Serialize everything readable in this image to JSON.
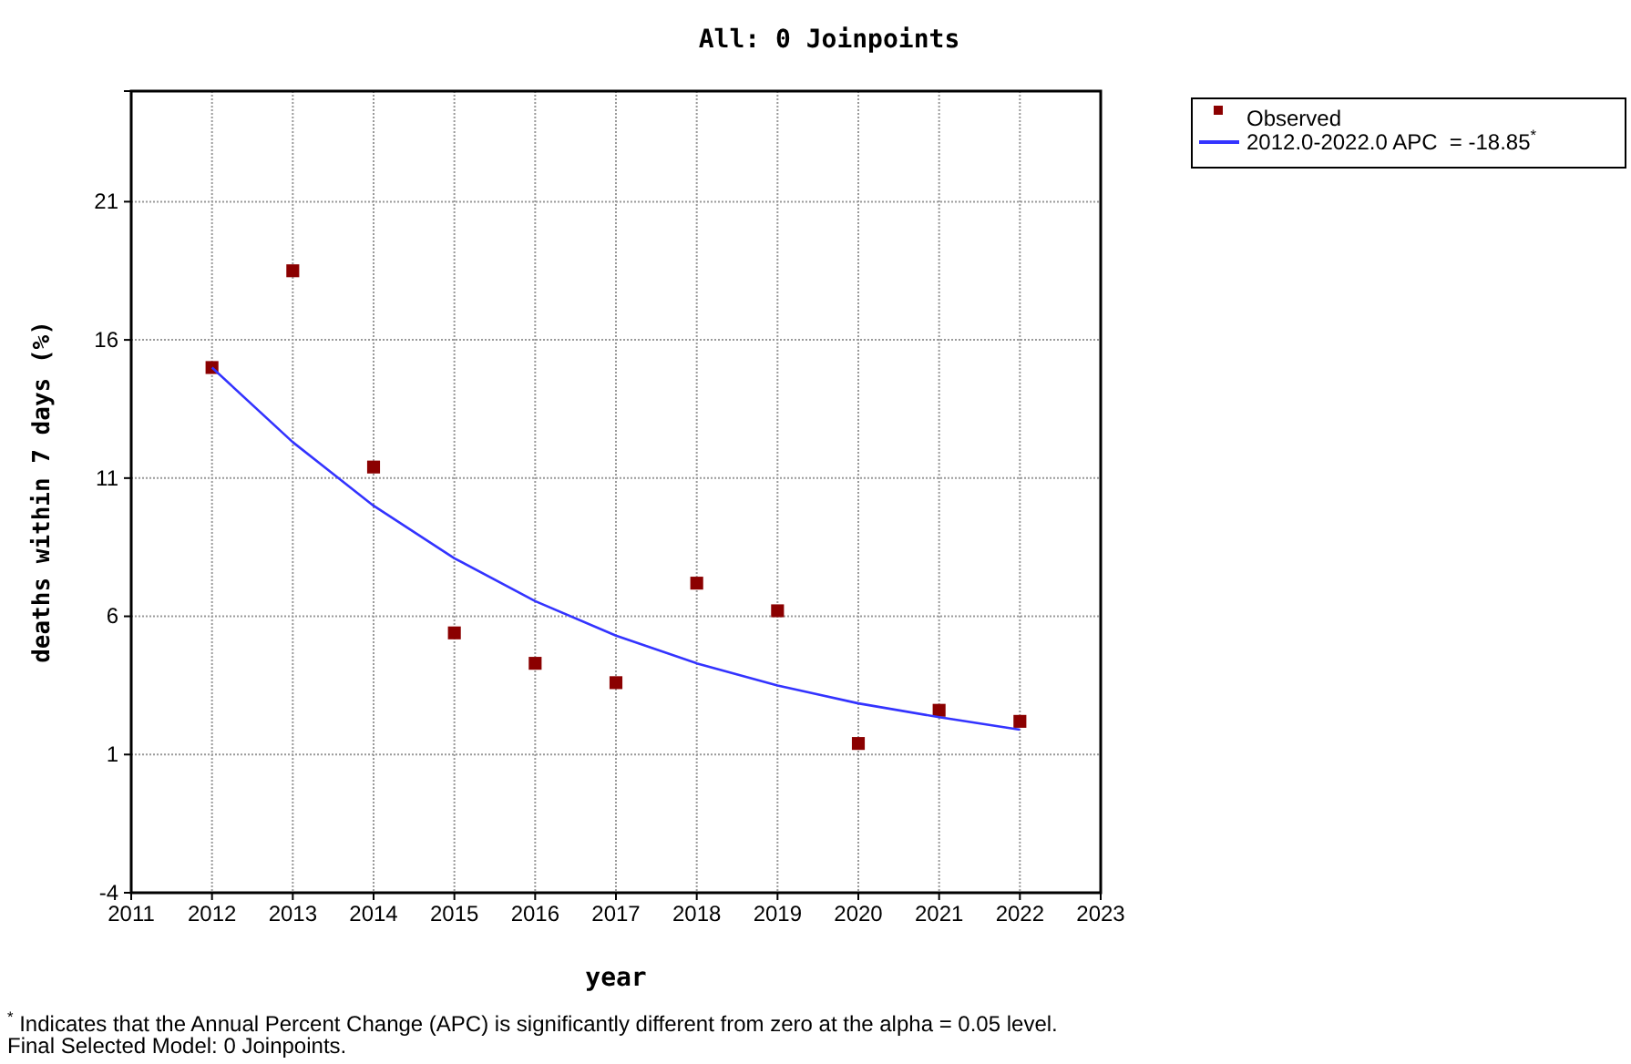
{
  "chart_data": {
    "type": "scatter",
    "title": "All: 0 Joinpoints",
    "xlabel": "year",
    "ylabel": "deaths within 7 days (%)",
    "x": [
      2012,
      2013,
      2014,
      2015,
      2016,
      2017,
      2018,
      2019,
      2020,
      2021,
      2022
    ],
    "series": [
      {
        "name": "Observed",
        "color": "#8b0000",
        "marker": "square",
        "values": [
          15.0,
          18.5,
          11.4,
          5.4,
          4.3,
          3.6,
          7.2,
          6.2,
          1.4,
          2.6,
          2.2
        ]
      },
      {
        "name": "2012.0-2022.0 APC  = -18.85$^{*}$",
        "type": "line",
        "color": "#3333ff",
        "marker": "none",
        "values": [
          15.0,
          12.3,
          10.0,
          8.1,
          6.55,
          5.3,
          4.3,
          3.5,
          2.85,
          2.35,
          1.9
        ]
      }
    ],
    "xlim": [
      2011,
      2023
    ],
    "xticks": [
      2011,
      2012,
      2013,
      2014,
      2015,
      2016,
      2017,
      2018,
      2019,
      2020,
      2021,
      2022,
      2023
    ],
    "ylim": [
      -4,
      25
    ],
    "yticks": [
      -4,
      1,
      6,
      11,
      16,
      21
    ],
    "grid": true,
    "legend": "top right",
    "annotations": [
      "$^{*}$ Indicates that the Annual Percent Change (APC) is significantly different from zero at the alpha = 0.05 level.",
      "Final Selected Model: 0 Joinpoints."
    ]
  }
}
